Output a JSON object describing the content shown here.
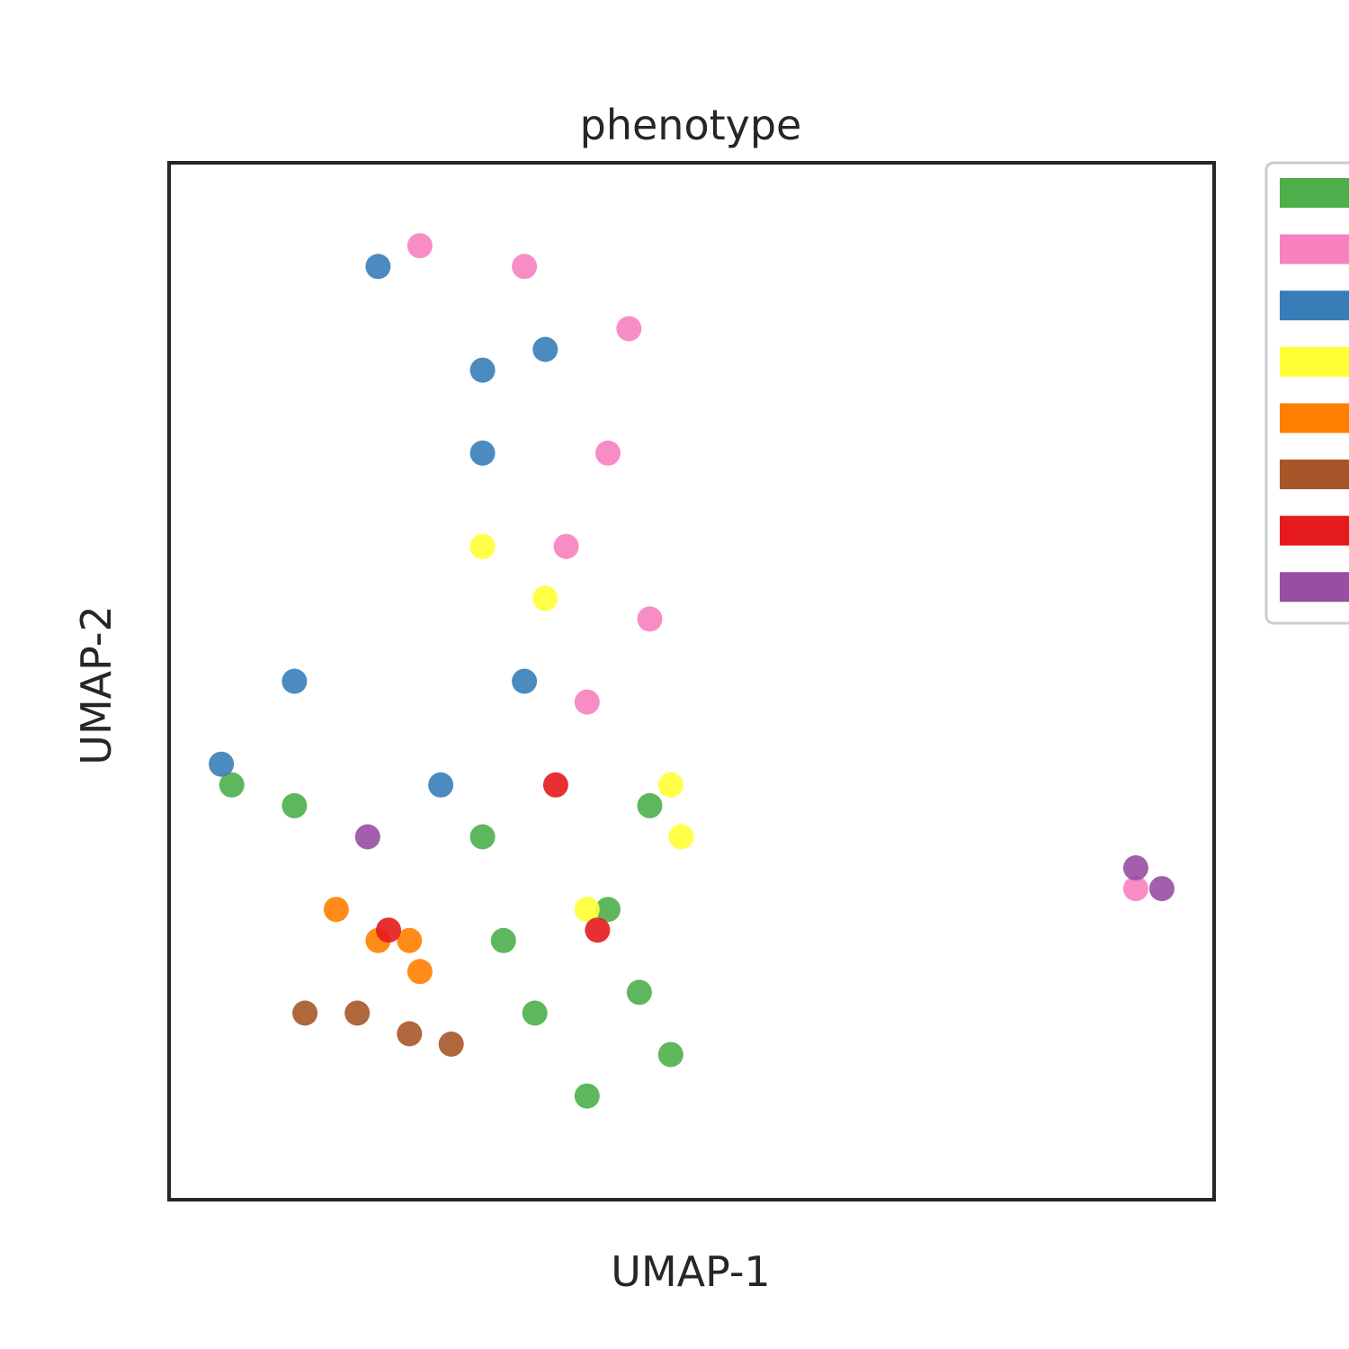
{
  "chart_data": {
    "type": "scatter",
    "title": "phenotype",
    "xlabel": "UMAP-1",
    "ylabel": "UMAP-2",
    "xlim": [
      0,
      100
    ],
    "ylim": [
      0,
      100
    ],
    "grid": false,
    "ticks_shown": false,
    "legend_position": "right, outside plot",
    "legend_labels_visible": false,
    "series": [
      {
        "color": "#4daf4a",
        "values": [
          [
            30,
            35
          ],
          [
            42,
            28
          ],
          [
            45,
            20
          ],
          [
            35,
            18
          ],
          [
            48,
            14
          ],
          [
            32,
            25
          ],
          [
            40,
            10
          ],
          [
            6,
            40
          ],
          [
            12,
            38
          ],
          [
            46,
            38
          ]
        ]
      },
      {
        "color": "#f781bf",
        "values": [
          [
            24,
            92
          ],
          [
            34,
            90
          ],
          [
            44,
            84
          ],
          [
            42,
            72
          ],
          [
            38,
            63
          ],
          [
            46,
            56
          ],
          [
            40,
            48
          ],
          [
            92.5,
            30
          ]
        ]
      },
      {
        "color": "#377eb8",
        "values": [
          [
            20,
            90
          ],
          [
            30,
            80
          ],
          [
            36,
            82
          ],
          [
            30,
            72
          ],
          [
            12,
            50
          ],
          [
            5,
            42
          ],
          [
            34,
            50
          ],
          [
            26,
            40
          ]
        ]
      },
      {
        "color": "#ffff33",
        "values": [
          [
            30,
            63
          ],
          [
            36,
            58
          ],
          [
            48,
            40
          ],
          [
            49,
            35
          ],
          [
            40,
            28
          ]
        ]
      },
      {
        "color": "#ff7f00",
        "values": [
          [
            16,
            28
          ],
          [
            20,
            25
          ],
          [
            23,
            25
          ],
          [
            24,
            22
          ]
        ]
      },
      {
        "color": "#a65628",
        "values": [
          [
            13,
            18
          ],
          [
            18,
            18
          ],
          [
            23,
            16
          ],
          [
            27,
            15
          ]
        ]
      },
      {
        "color": "#e41a1c",
        "values": [
          [
            21,
            26
          ],
          [
            37,
            40
          ],
          [
            41,
            26
          ]
        ]
      },
      {
        "color": "#984ea3",
        "values": [
          [
            19,
            35
          ],
          [
            92.5,
            32
          ],
          [
            95,
            30
          ]
        ]
      }
    ]
  }
}
